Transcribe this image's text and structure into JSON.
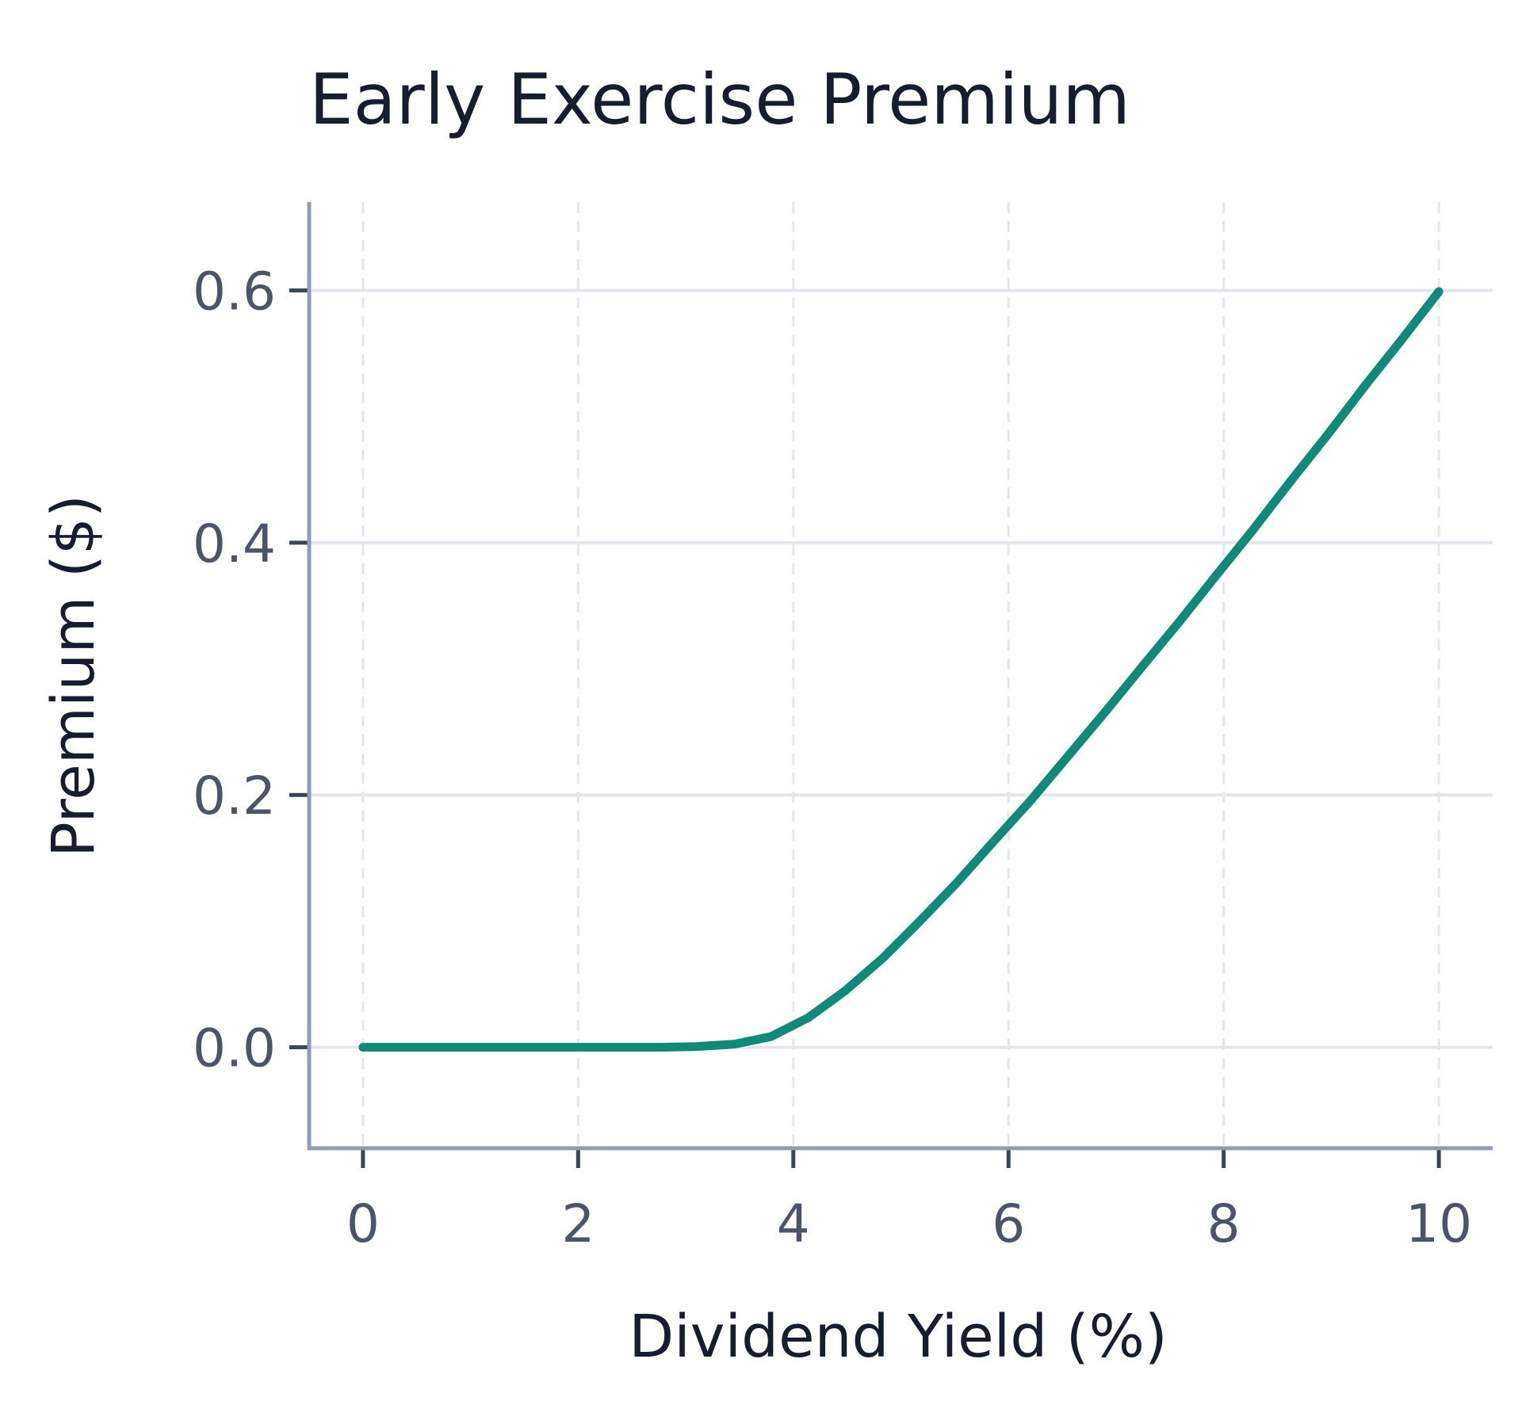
{
  "chart_data": {
    "type": "line",
    "title": "Early Exercise Premium",
    "xlabel": "Dividend Yield (%)",
    "ylabel": "Premium ($)",
    "xlim": [
      -0.5,
      10.5
    ],
    "ylim": [
      -0.08,
      0.67
    ],
    "grid": true,
    "x_ticks": [
      {
        "value": 0,
        "label": "0"
      },
      {
        "value": 2,
        "label": "2"
      },
      {
        "value": 4,
        "label": "4"
      },
      {
        "value": 6,
        "label": "6"
      },
      {
        "value": 8,
        "label": "8"
      },
      {
        "value": 10,
        "label": "10"
      }
    ],
    "y_ticks": [
      {
        "value": 0.0,
        "label": "0.0"
      },
      {
        "value": 0.2,
        "label": "0.2"
      },
      {
        "value": 0.4,
        "label": "0.4"
      },
      {
        "value": 0.6,
        "label": "0.6"
      }
    ],
    "series": [
      {
        "color": "#0f8a78",
        "x": [
          0.0,
          0.345,
          0.69,
          1.03,
          1.38,
          1.72,
          2.07,
          2.41,
          2.76,
          3.1,
          3.45,
          3.79,
          4.14,
          4.48,
          4.83,
          5.17,
          5.52,
          5.86,
          6.21,
          6.55,
          6.9,
          7.24,
          7.59,
          7.93,
          8.28,
          8.62,
          8.97,
          9.31,
          9.66,
          10.0
        ],
        "y": [
          0.0,
          0.0,
          0.0,
          0.0,
          0.0,
          0.0,
          0.0,
          0.0,
          0.0,
          0.0006,
          0.0024,
          0.0084,
          0.0235,
          0.0446,
          0.0705,
          0.0995,
          0.1305,
          0.163,
          0.196,
          0.2305,
          0.266,
          0.3015,
          0.3375,
          0.374,
          0.411,
          0.4485,
          0.486,
          0.524,
          0.5615,
          0.599
        ]
      }
    ]
  }
}
